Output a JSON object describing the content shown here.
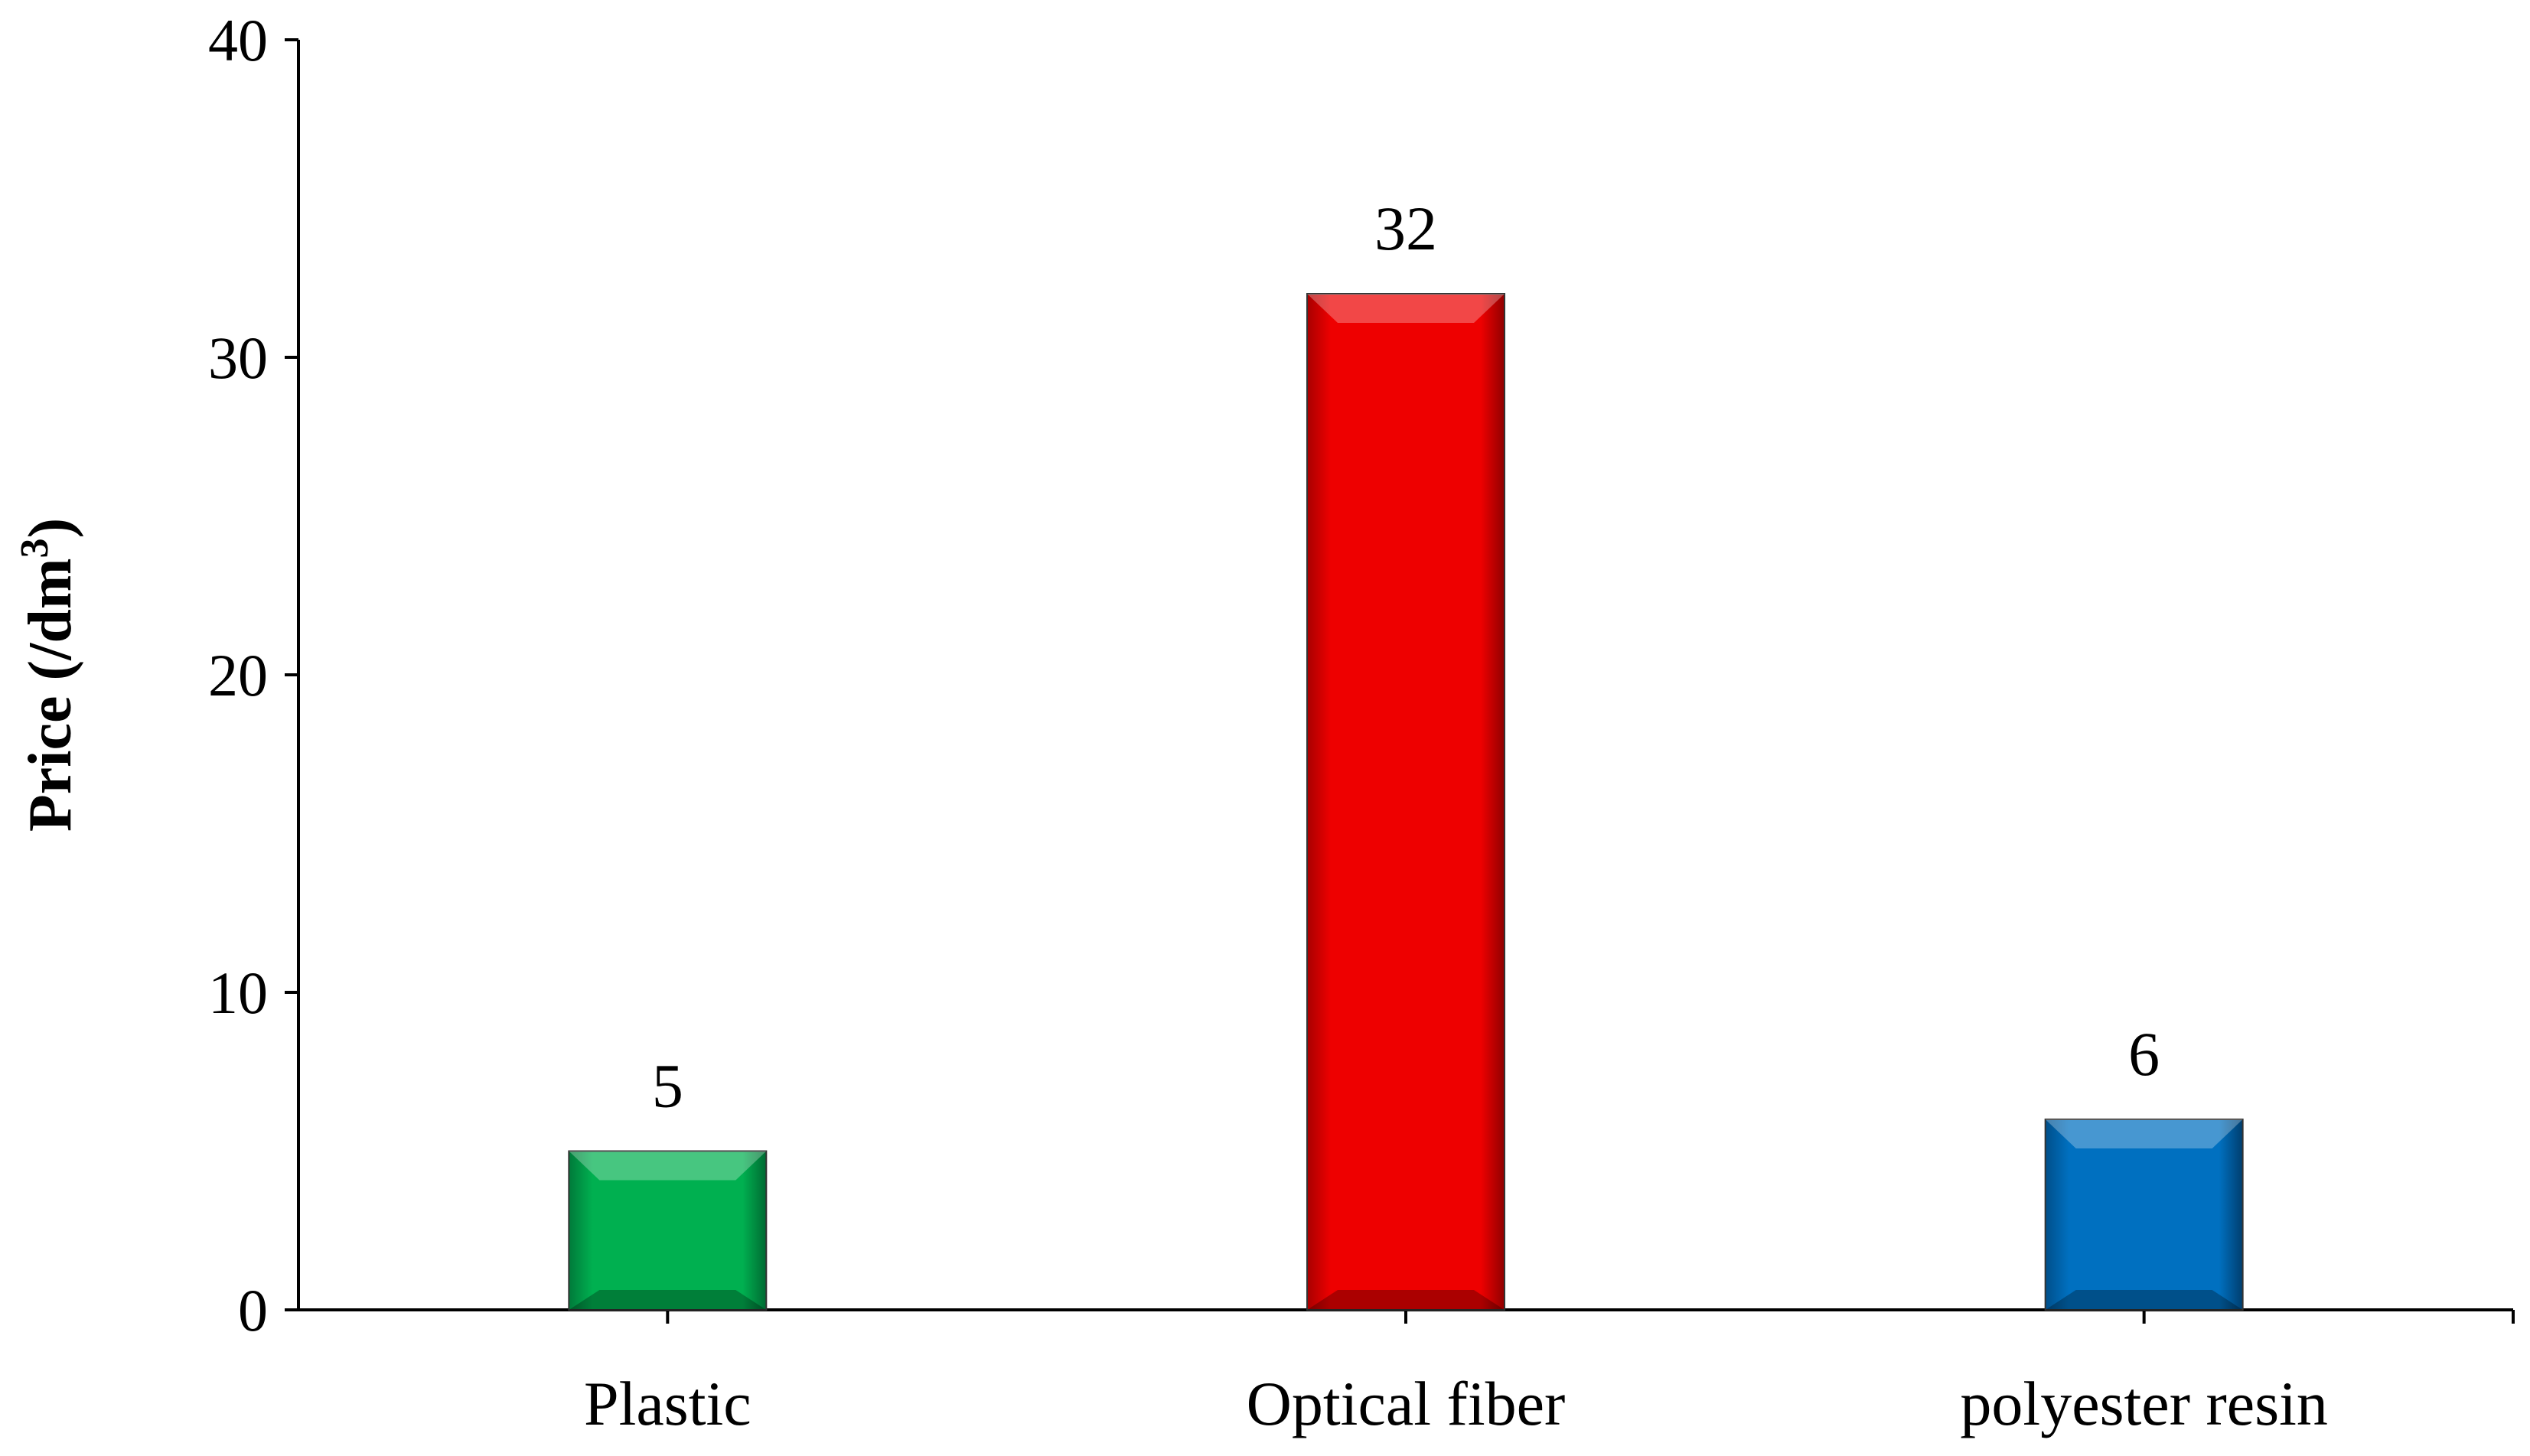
{
  "chart_data": {
    "type": "bar",
    "title": "",
    "xlabel": "",
    "ylabel": "Price (/dm",
    "ylabel_superscript": "3",
    "ylabel_close": ")",
    "categories": [
      "Plastic",
      "Optical fiber",
      "polyester resin"
    ],
    "values": [
      5,
      32,
      6
    ],
    "data_labels": [
      "5",
      "32",
      "6"
    ],
    "colors": [
      "#00b050",
      "#ee0000",
      "#0070c0"
    ],
    "ylim": [
      0,
      40
    ],
    "yticks": [
      0,
      10,
      20,
      30,
      40
    ],
    "ytick_labels": [
      "0",
      "10",
      "20",
      "30",
      "40"
    ],
    "grid": false,
    "legend": "none"
  }
}
